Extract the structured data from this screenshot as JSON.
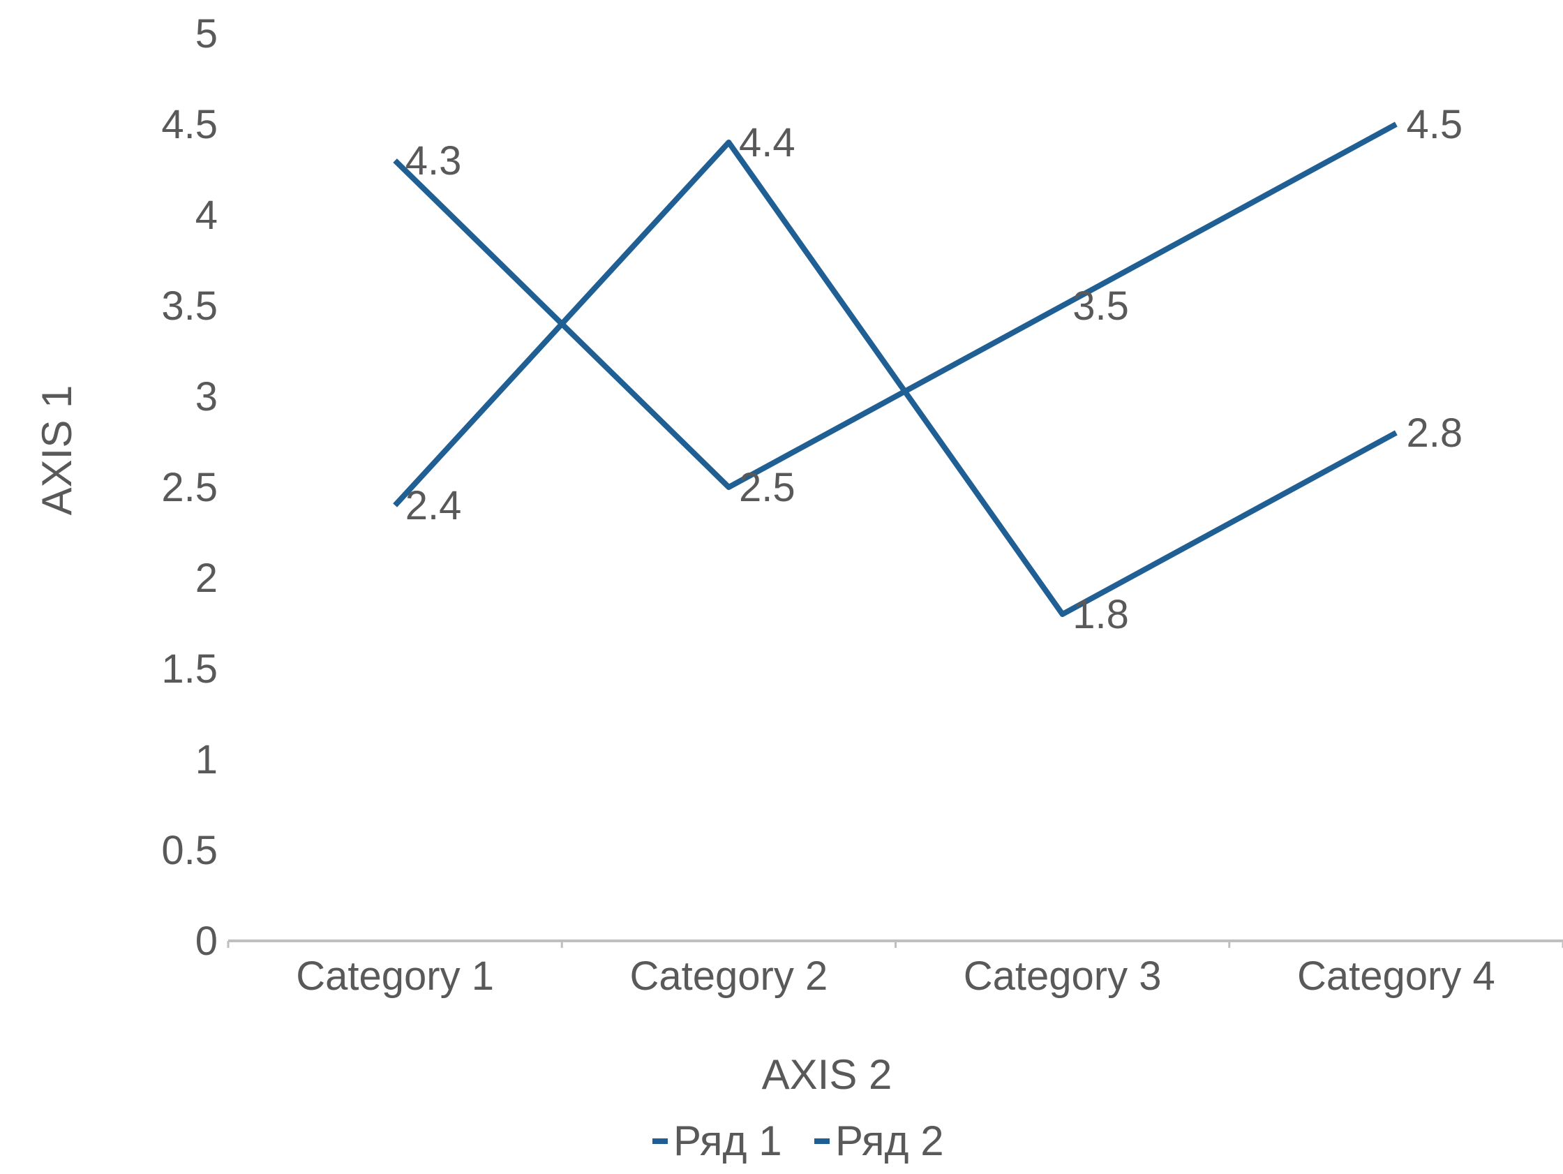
{
  "chart_data": {
    "type": "line",
    "categories": [
      "Category 1",
      "Category 2",
      "Category 3",
      "Category 4"
    ],
    "series": [
      {
        "name": "Ряд 1",
        "values": [
          4.3,
          2.5,
          3.5,
          4.5
        ],
        "color": "#1F5F94"
      },
      {
        "name": "Ряд 2",
        "values": [
          2.4,
          4.4,
          1.8,
          2.8
        ],
        "color": "#1F5F94"
      }
    ],
    "xlabel": "AXIS 2",
    "ylabel": "AXIS 1",
    "ylim": [
      0,
      5
    ],
    "yticks": [
      "0",
      "0.5",
      "1",
      "1.5",
      "2",
      "2.5",
      "3",
      "3.5",
      "4",
      "4.5",
      "5"
    ],
    "grid": false,
    "data_labels": true,
    "legend": "bottom",
    "axis_color": "#BFBFBF",
    "text_color": "#595959"
  }
}
